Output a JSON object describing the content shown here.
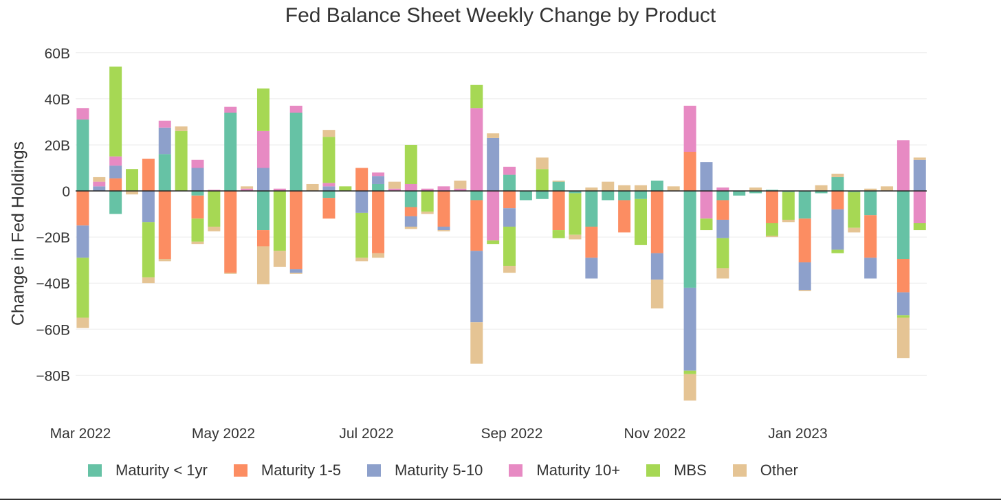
{
  "chart_data": {
    "type": "bar",
    "barmode": "relative",
    "title": "Fed Balance Sheet Weekly Change by Product",
    "xlabel": "",
    "ylabel": "Change in Fed Holdings",
    "ylim": [
      -93,
      65
    ],
    "yticks": [
      60,
      40,
      20,
      0,
      -20,
      -40,
      -60,
      -80
    ],
    "ytick_labels": [
      "60B",
      "40B",
      "20B",
      "0",
      "−20B",
      "−40B",
      "−60B",
      "−80B"
    ],
    "xticks": [
      "2022-03-01",
      "2022-05-01",
      "2022-07-01",
      "2022-09-01",
      "2022-11-01",
      "2023-01-01"
    ],
    "xtick_labels": [
      "Mar 2022",
      "May 2022",
      "Jul 2022",
      "Sep 2022",
      "Nov 2022",
      "Jan 2023"
    ],
    "grid": true,
    "legend_position": "bottom",
    "x_start": "2022-03-02",
    "x_step_days": 7,
    "series": [
      {
        "name": "Maturity < 1yr",
        "color": "#66c2a5",
        "values": [
          31,
          0,
          -10,
          0,
          0,
          16,
          0,
          -2,
          0,
          34,
          0,
          -17,
          0,
          34,
          0,
          -3,
          0,
          0,
          3,
          0,
          -7,
          0,
          0,
          0,
          -4,
          0,
          7,
          -4,
          -3.5,
          4,
          -1,
          -15.5,
          -4,
          -4,
          -3.5,
          4.5,
          0,
          -42,
          0,
          -4,
          -2,
          -1,
          0.5,
          -0.5,
          -12,
          -1,
          6,
          -0.5,
          -10.5,
          0,
          -29.5,
          0
        ]
      },
      {
        "name": "Maturity 1-5",
        "color": "#fc8d62",
        "values": [
          -15,
          0,
          5.5,
          0,
          14,
          -29.5,
          0,
          -10,
          0,
          -35.5,
          0,
          -7,
          0,
          -34,
          0,
          -9,
          0,
          10,
          -27,
          0,
          -4,
          0,
          -15.5,
          0,
          -22,
          0,
          -7.5,
          0,
          0,
          -17,
          0,
          -13.5,
          0,
          -14,
          0,
          -27,
          0,
          17,
          0,
          -8.5,
          0,
          0,
          -14,
          0,
          -19,
          0,
          -8,
          0,
          -18.5,
          0,
          -14.5,
          0
        ]
      },
      {
        "name": "Maturity 5-10",
        "color": "#8da0cb",
        "values": [
          -14,
          2,
          5.5,
          0,
          -13.5,
          11.5,
          0,
          10,
          0,
          0,
          0,
          10,
          0,
          -1.5,
          0,
          2,
          0,
          -9.5,
          3.5,
          0,
          -4.5,
          0,
          -1.5,
          0,
          -31,
          23,
          -8,
          0,
          0,
          0,
          0,
          -9,
          0,
          0,
          0,
          -11.5,
          0,
          -36,
          12.5,
          -8,
          0,
          0,
          0,
          0,
          -12,
          0,
          -17.5,
          0,
          -9,
          0,
          -10,
          13.5
        ]
      },
      {
        "name": "Maturity 10+",
        "color": "#e78ac3",
        "values": [
          5,
          2,
          4,
          0,
          0,
          3,
          0,
          3.5,
          0.5,
          2.5,
          1,
          16,
          1,
          3,
          0,
          1.5,
          0,
          0,
          1.5,
          1,
          3,
          1,
          2,
          1,
          36,
          -21.5,
          3.5,
          0,
          0,
          0,
          0,
          0,
          0,
          0,
          0,
          0,
          0,
          20,
          -12,
          1.5,
          0,
          0,
          0,
          0,
          0,
          0,
          0,
          0,
          0,
          0,
          22,
          -14
        ]
      },
      {
        "name": "MBS",
        "color": "#a6d854",
        "values": [
          -26,
          0,
          39,
          9.5,
          -24,
          0,
          26,
          -10,
          -15.5,
          0,
          0,
          18.5,
          -26,
          0,
          0,
          20,
          2,
          -19.5,
          0,
          0,
          17,
          -9,
          0,
          0,
          10,
          -1.5,
          -17,
          0,
          9.5,
          -3.5,
          -18,
          0,
          0,
          0,
          -20,
          0,
          0,
          -1.5,
          -5,
          -13,
          0,
          0,
          -5.5,
          -12,
          0,
          0,
          -1.5,
          -15.5,
          0,
          0,
          -1,
          -3
        ]
      },
      {
        "name": "Other",
        "color": "#e5c494",
        "values": [
          -4.5,
          2,
          0,
          -1.5,
          -2.5,
          -1,
          2,
          -1,
          -2,
          -0.5,
          1,
          -16.5,
          -7,
          -0.5,
          3,
          3,
          0,
          -1.5,
          -2,
          3,
          -1,
          -1,
          -0.5,
          3.5,
          -18,
          2,
          -3,
          0,
          5,
          0.5,
          -2,
          1.5,
          4,
          2.5,
          2.5,
          -12.5,
          2,
          -11.5,
          0,
          -4.5,
          0,
          1.5,
          -0.5,
          -1,
          -0.5,
          2.5,
          1.5,
          -2,
          1,
          2,
          -17.5,
          1
        ]
      }
    ]
  }
}
